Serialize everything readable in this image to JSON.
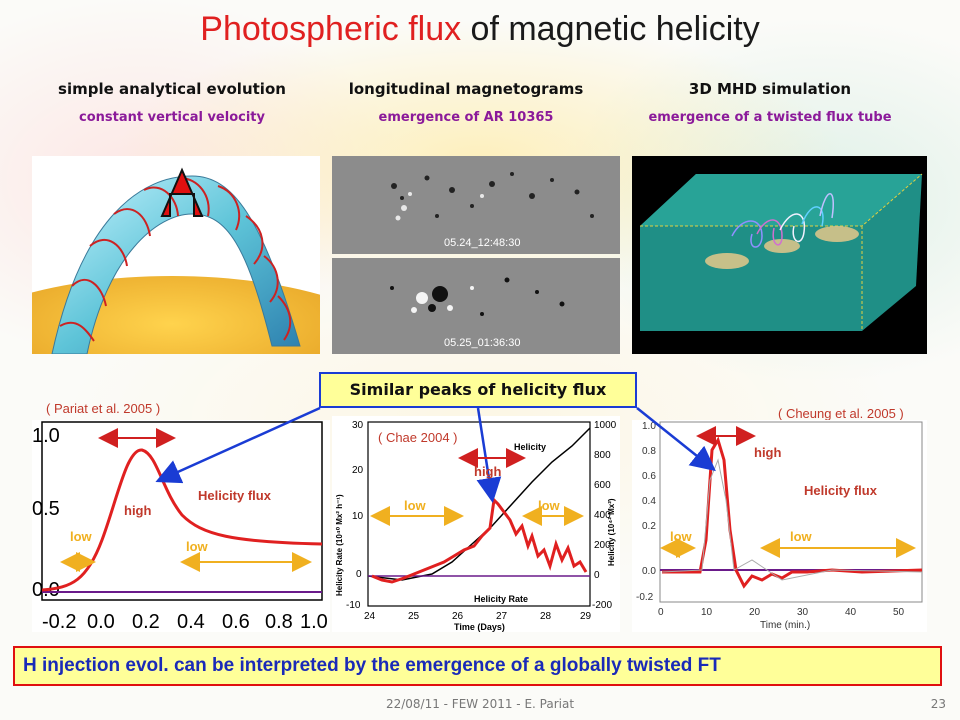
{
  "title": {
    "highlight": "Photospheric flux",
    "rest": " of magnetic helicity"
  },
  "columns": [
    {
      "heading": "simple analytical evolution",
      "sub": "constant vertical velocity"
    },
    {
      "heading": "longitudinal magnetograms",
      "sub": "emergence of AR 10365"
    },
    {
      "heading": "3D MHD simulation",
      "sub": "emergence of a twisted flux tube"
    }
  ],
  "magnetograms": {
    "top_stamp": "05.24_12:48:30",
    "bottom_stamp": "05.25_01:36:30"
  },
  "refs": {
    "pariat": "( Pariat et al. 2005 )",
    "chae": "( Chae 2004 )",
    "cheung": "( Cheung et al. 2005 )"
  },
  "callout": "Similar peaks of helicity flux",
  "plot1": {
    "yticks": [
      "1.0",
      "0.5",
      "0.0"
    ],
    "xticks": [
      "-0.2",
      "0.0",
      "0.2",
      "0.4",
      "0.6",
      "0.8",
      "1.0"
    ],
    "high": "high",
    "low_left": "low",
    "low_right": "low",
    "series_label": "Helicity flux"
  },
  "plot2": {
    "yleft_ticks": [
      "30",
      "20",
      "10",
      "0",
      "-10"
    ],
    "yright_ticks": [
      "1000",
      "800",
      "600",
      "400",
      "200",
      "0",
      "-200"
    ],
    "xticks": [
      "24",
      "25",
      "26",
      "27",
      "28",
      "29"
    ],
    "xlabel": "Time (Days)",
    "ylabel_left": "Helicity Rate (10⁴⁰ Mx² h⁻¹)",
    "ylabel_right": "Helicity (10⁴² Mx²)",
    "legend_helicity": "Helicity",
    "legend_rate": "Helicity Rate",
    "high": "high",
    "low_left": "low",
    "low_right": "low"
  },
  "plot3": {
    "yticks": [
      "1.0",
      "0.8",
      "0.6",
      "0.4",
      "0.2",
      "0.0",
      "-0.2"
    ],
    "xticks": [
      "0",
      "10",
      "20",
      "30",
      "40",
      "50"
    ],
    "xlabel": "Time (min.)",
    "high": "high",
    "low_left": "low",
    "low_right": "low",
    "series_label": "Helicity flux"
  },
  "bottom_statement": "H injection evol. can be interpreted by the emergence of a globally twisted FT",
  "footer": "22/08/11 -  FEW 2011 - E. Pariat",
  "page_number": "23",
  "colors": {
    "title_highlight": "#e02020",
    "subheading": "#8b1a9a",
    "callout_fill": "#ffff99",
    "callout_border": "#1a3cd4",
    "statement_border": "#e01010",
    "statement_text": "#1a2ab8",
    "curve_red": "#e02020",
    "arrow_orange": "#f0b020"
  }
}
